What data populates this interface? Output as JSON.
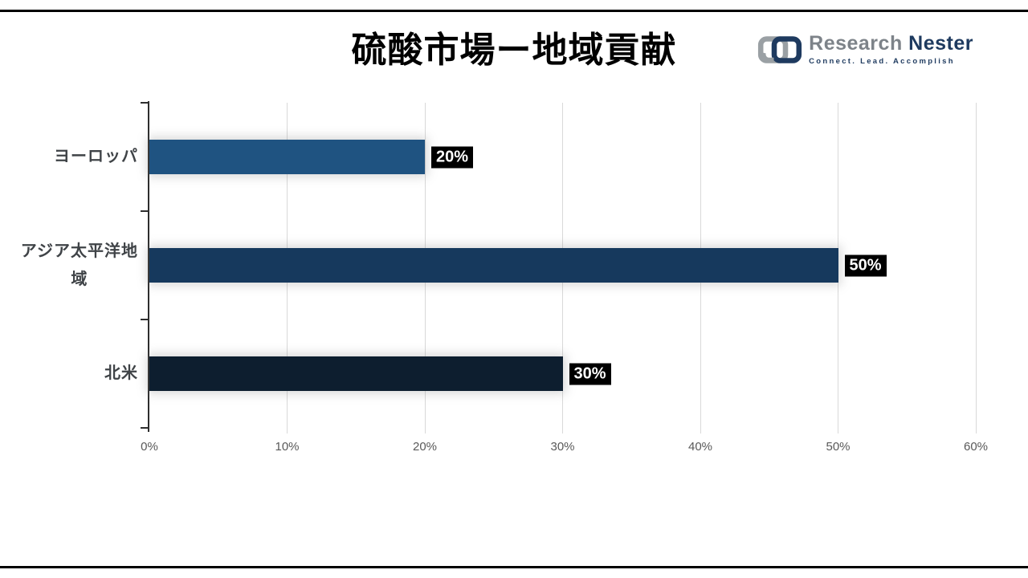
{
  "header": {
    "title": "硫酸市場ー地域貢献"
  },
  "logo": {
    "research": "Research",
    "nester": "Nester",
    "tagline": "Connect. Lead. Accomplish",
    "icon": "chain-links-icon",
    "gray_color": "#9AA0A4",
    "navy_color": "#1E3A5F"
  },
  "chart_data": {
    "type": "bar",
    "orientation": "horizontal",
    "title": "硫酸市場ー地域貢献",
    "categories": [
      "ヨーロッパ",
      "アジア太平洋地域",
      "北米"
    ],
    "category_lines": [
      [
        "ヨーロッパ"
      ],
      [
        "アジア太平洋地",
        "域"
      ],
      [
        "北米"
      ]
    ],
    "values": [
      20,
      50,
      30
    ],
    "value_labels": [
      "20%",
      "50%",
      "30%"
    ],
    "bar_colors": [
      "#1F5381",
      "#16395D",
      "#0D1E2F"
    ],
    "x_ticks": [
      "0%",
      "10%",
      "20%",
      "30%",
      "40%",
      "50%",
      "60%"
    ],
    "xlim": [
      0,
      60
    ],
    "xlabel": "",
    "ylabel": "",
    "grid": true,
    "legend": false,
    "grid_color": "#D9D9D9",
    "axis_color": "#2E2E2E",
    "tick_label_color": "#595959",
    "category_label_color": "#3F4347",
    "value_label_bg": "#000000",
    "value_label_color": "#FFFFFF"
  }
}
